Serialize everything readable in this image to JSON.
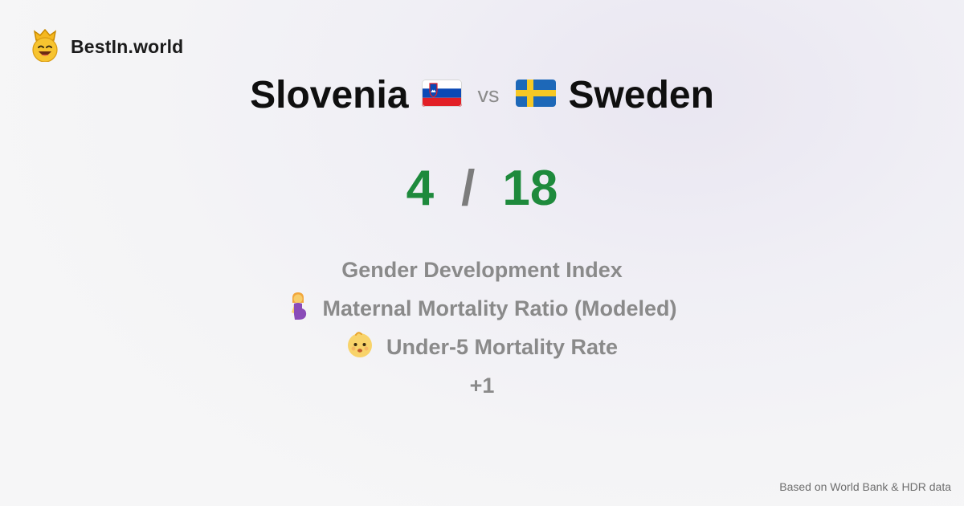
{
  "brand": {
    "name": "BestIn.world",
    "icon": "crowned-smiley-icon"
  },
  "comparison": {
    "country_a": {
      "name": "Slovenia",
      "flag": "slovenia-flag-icon"
    },
    "separator": "vs",
    "country_b": {
      "name": "Sweden",
      "flag": "sweden-flag-icon"
    }
  },
  "score": {
    "a": "4",
    "separator": "/",
    "b": "18",
    "color": "#1e8a3c"
  },
  "metrics": [
    {
      "label": "Gender Development Index",
      "icon": ""
    },
    {
      "label": "Maternal Mortality Ratio (Modeled)",
      "icon": "pregnant-woman-icon"
    },
    {
      "label": "Under-5 Mortality Rate",
      "icon": "baby-face-icon"
    }
  ],
  "more": "+1",
  "footer": "Based on World Bank & HDR data"
}
